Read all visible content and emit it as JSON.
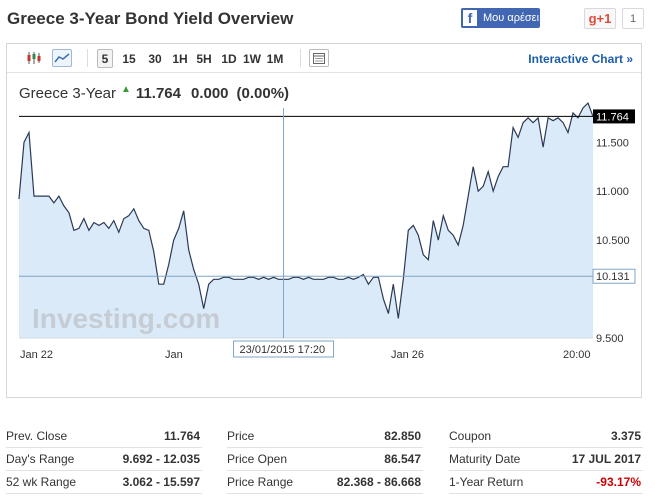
{
  "header": {
    "title": "Greece 3-Year Bond Yield Overview",
    "facebook_label": "Μου αρέσει",
    "gplus_label": "g+1",
    "gplus_count": "1"
  },
  "toolbar": {
    "timeframes": [
      "5",
      "15",
      "30",
      "1H",
      "5H",
      "1D",
      "1W",
      "1M"
    ],
    "active_timeframe": "5",
    "interactive_chart_label": "Interactive Chart »"
  },
  "quote": {
    "name": "Greece 3-Year",
    "last": "11.764",
    "change": "0.000",
    "change_pct": "(0.00%)"
  },
  "chart_data": {
    "type": "area",
    "x_tick_labels": [
      "Jan 22",
      "Jan",
      "Jan 26",
      "20:00"
    ],
    "y_tick_labels": [
      "11.500",
      "11.000",
      "10.500",
      "10.131",
      "9.500"
    ],
    "ylim": [
      9.5,
      11.85
    ],
    "current_value_label": "11.764",
    "current_value": 11.764,
    "crosshair_value_label": "10.131",
    "crosshair_value": 10.131,
    "crosshair_time_label": "23/01/2015 17:20",
    "crosshair_index": 53,
    "watermark": "Investing.com",
    "grid": false,
    "values": [
      10.92,
      11.5,
      11.6,
      10.95,
      10.95,
      10.95,
      10.95,
      10.88,
      10.95,
      10.85,
      10.78,
      10.6,
      10.62,
      10.72,
      10.6,
      10.68,
      10.65,
      10.68,
      10.62,
      10.7,
      10.58,
      10.72,
      10.75,
      10.82,
      10.7,
      10.62,
      10.6,
      10.38,
      10.05,
      10.05,
      10.25,
      10.5,
      10.62,
      10.8,
      10.4,
      10.2,
      10.05,
      9.8,
      10.05,
      10.1,
      10.1,
      10.12,
      10.12,
      10.1,
      10.1,
      10.1,
      10.12,
      10.12,
      10.1,
      10.12,
      10.1,
      10.12,
      10.1,
      10.1,
      10.1,
      10.12,
      10.12,
      10.1,
      10.12,
      10.1,
      10.1,
      10.1,
      10.12,
      10.12,
      10.1,
      10.1,
      10.12,
      10.1,
      10.12,
      10.15,
      10.05,
      10.12,
      10.12,
      9.9,
      9.75,
      10.05,
      9.7,
      10.1,
      10.6,
      10.65,
      10.55,
      10.35,
      10.3,
      10.7,
      10.5,
      10.75,
      10.6,
      10.55,
      10.45,
      10.65,
      10.95,
      11.25,
      11.0,
      11.05,
      11.2,
      11.0,
      11.15,
      11.25,
      11.25,
      11.65,
      11.55,
      11.7,
      11.75,
      11.7,
      11.75,
      11.45,
      11.75,
      11.72,
      11.75,
      11.7,
      11.6,
      11.8,
      11.75,
      11.85,
      11.9,
      11.764
    ]
  },
  "stats": [
    [
      {
        "label": "Prev. Close",
        "value": "11.764"
      },
      {
        "label": "Day's Range",
        "value": "9.692 - 12.035"
      },
      {
        "label": "52 wk Range",
        "value": "3.062 - 15.597"
      }
    ],
    [
      {
        "label": "Price",
        "value": "82.850"
      },
      {
        "label": "Price Open",
        "value": "86.547"
      },
      {
        "label": "Price Range",
        "value": "82.368 - 86.668"
      }
    ],
    [
      {
        "label": "Coupon",
        "value": "3.375"
      },
      {
        "label": "Maturity Date",
        "value": "17 JUL 2017"
      },
      {
        "label": "1-Year Return",
        "value": "-93.17%"
      }
    ]
  ],
  "colors": {
    "line": "#2b3a55",
    "area_fill": "#dbeaf9",
    "negative": "#cc0000",
    "accent": "#1c5ea8"
  }
}
